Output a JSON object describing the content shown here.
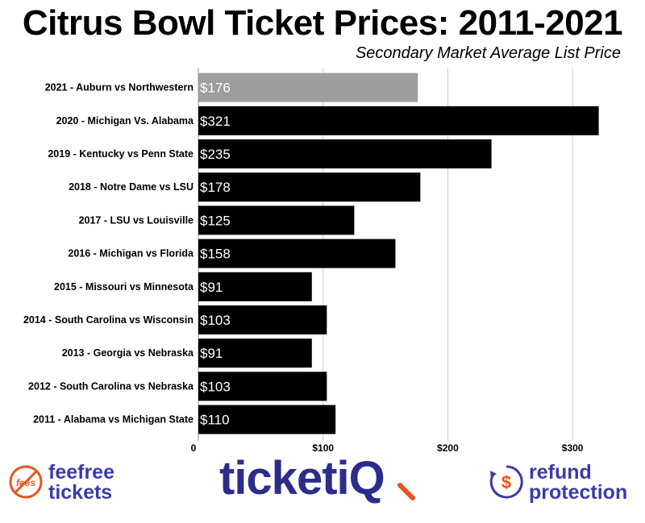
{
  "chart_data": {
    "type": "bar",
    "orientation": "horizontal",
    "title": "Citrus Bowl Ticket Prices: 2011-2021",
    "subtitle": "Secondary Market Average List Price",
    "categories": [
      "2021 - Auburn vs Northwestern",
      "2020 - Michigan Vs. Alabama",
      "2019 - Kentucky vs Penn State",
      "2018 - Notre Dame vs LSU",
      "2017 - LSU vs Louisville",
      "2016 - Michigan vs Florida",
      "2015 - Missouri vs Minnesota",
      "2014 - South Carolina vs Wisconsin",
      "2013 - Georgia vs Nebraska",
      "2012 - South Carolina vs Nebraska",
      "2011 - Alabama vs Michigan State"
    ],
    "values": [
      176,
      321,
      235,
      178,
      125,
      158,
      91,
      103,
      91,
      103,
      110
    ],
    "value_labels": [
      "$176",
      "$321",
      "$235",
      "$178",
      "$125",
      "$158",
      "$91",
      "$103",
      "$91",
      "$103",
      "$110"
    ],
    "bar_colors": [
      "#9e9e9e",
      "#000000",
      "#000000",
      "#000000",
      "#000000",
      "#000000",
      "#000000",
      "#000000",
      "#000000",
      "#000000",
      "#000000"
    ],
    "xlim": [
      0,
      340
    ],
    "xticks": [
      0,
      100,
      200,
      300
    ],
    "xtick_labels": [
      "0",
      "$100",
      "$200",
      "$300"
    ],
    "grid": true,
    "xlabel": "",
    "ylabel": ""
  },
  "footer": {
    "feefree": {
      "badge": "fees",
      "line1": "feefree",
      "line2": "tickets"
    },
    "ticketiq": {
      "text": "ticketiQ"
    },
    "refund": {
      "symbol": "$",
      "line1": "refund",
      "line2": "protection"
    }
  },
  "colors": {
    "brand": "#2c2c8c",
    "accent": "#e8541e"
  }
}
